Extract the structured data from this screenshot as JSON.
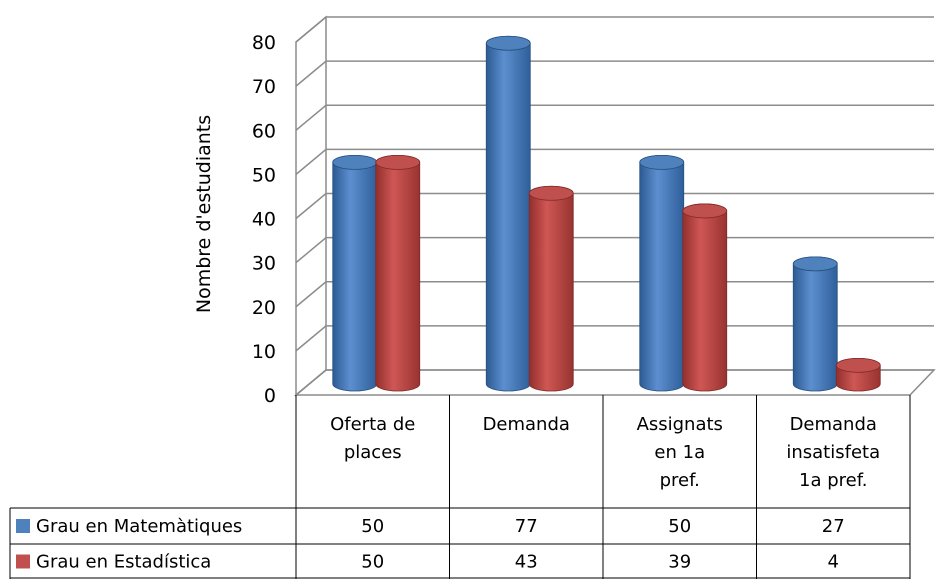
{
  "chart_data": {
    "type": "bar",
    "ylabel": "Nombre d'estudiants",
    "ylim": [
      0,
      80
    ],
    "yticks": [
      "0",
      "10",
      "20",
      "30",
      "40",
      "50",
      "60",
      "70",
      "80"
    ],
    "categories": [
      [
        "Oferta de",
        "places"
      ],
      [
        "Demanda"
      ],
      [
        "Assignats",
        "en 1a",
        "pref."
      ],
      [
        "Demanda",
        "insatisfeta",
        "1a pref."
      ]
    ],
    "series": [
      {
        "name": "Grau en Matemàtiques",
        "values": [
          50,
          77,
          50,
          27
        ],
        "color": "#4F81BD"
      },
      {
        "name": "Grau en Estadística",
        "values": [
          50,
          43,
          39,
          4
        ],
        "color": "#C0504D"
      }
    ],
    "grid": true,
    "legend": "data-table",
    "style": "3d-cylinder"
  }
}
